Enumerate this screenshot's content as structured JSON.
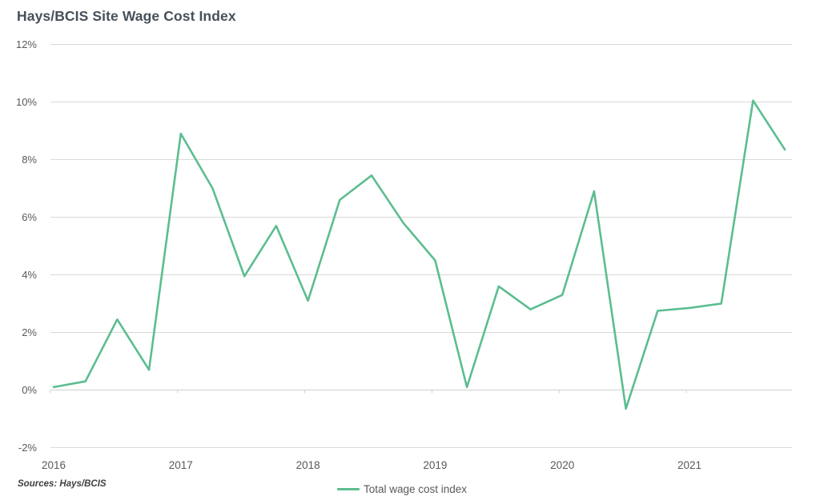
{
  "page": {
    "title": "Hays/BCIS Site Wage Cost Index",
    "source_note": "Sources: Hays/BCIS"
  },
  "legend": {
    "label": "Total wage cost index"
  },
  "colors": {
    "line": "#5cbd90",
    "grid": "#d9d9d9",
    "axis": "#d0d0d0",
    "axis_text": "#595959",
    "title_text": "#47505a",
    "source_text": "#3f3f3f"
  },
  "chart_data": {
    "type": "line",
    "title": "Hays/BCIS Site Wage Cost Index",
    "xlabel": "",
    "ylabel": "",
    "ylim": [
      -2,
      12
    ],
    "y_step": 2,
    "y_tick_labels": [
      "12%",
      "10%",
      "8%",
      "6%",
      "4%",
      "2%",
      "0%",
      "-2%"
    ],
    "x_tick_labels": [
      "2016",
      "2017",
      "2018",
      "2019",
      "2020",
      "2021"
    ],
    "grid": "horizontal",
    "legend_position": "bottom-center",
    "categories": [
      "2016 Q1",
      "2016 Q2",
      "2016 Q3",
      "2016 Q4",
      "2017 Q1",
      "2017 Q2",
      "2017 Q3",
      "2017 Q4",
      "2018 Q1",
      "2018 Q2",
      "2018 Q3",
      "2018 Q4",
      "2019 Q1",
      "2019 Q2",
      "2019 Q3",
      "2019 Q4",
      "2020 Q1",
      "2020 Q2",
      "2020 Q3",
      "2020 Q4",
      "2021 Q1",
      "2021 Q2",
      "2021 Q3",
      "2021 Q4"
    ],
    "series": [
      {
        "name": "Total wage cost index",
        "values": [
          0.1,
          0.3,
          2.45,
          0.7,
          8.9,
          7.0,
          3.95,
          5.7,
          3.1,
          6.6,
          7.45,
          5.8,
          4.5,
          0.1,
          3.6,
          2.8,
          3.3,
          6.9,
          -0.65,
          2.75,
          2.85,
          3.0,
          10.05,
          8.35
        ]
      }
    ]
  }
}
